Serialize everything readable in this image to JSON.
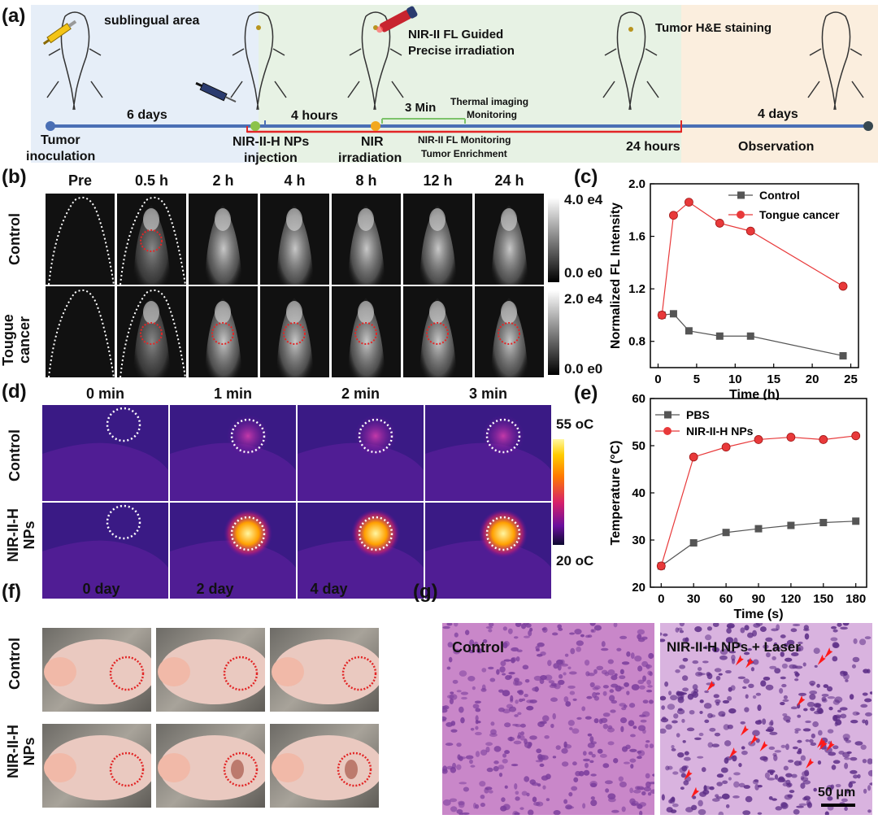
{
  "panels": {
    "a": "(a)",
    "b": "(b)",
    "c": "(c)",
    "d": "(d)",
    "e": "(e)",
    "f": "(f)",
    "g": "(g)"
  },
  "timeline": {
    "sublingual": "sublingual area",
    "days6": "6 days",
    "tumor_inoc_1": "Tumor",
    "tumor_inoc_2": "inoculation",
    "nps_inj_1": "NIR-II-H NPs",
    "nps_inj_2": "injection",
    "hours4": "4 hours",
    "min3": "3 Min",
    "thermal_1": "Thermal imaging",
    "thermal_2": "Monitoring",
    "nir_1": "NIR",
    "nir_2": "irradiation",
    "guided_1": "NIR-II FL Guided",
    "guided_2": "Precise irradiation",
    "fl_mon_1": "NIR-II FL Monitoring",
    "fl_mon_2": "Tumor Enrichment",
    "hours24": "24 hours",
    "he": "Tumor H&E staining",
    "days4": "4 days",
    "observation": "Observation"
  },
  "panel_b": {
    "times": [
      "Pre",
      "0.5 h",
      "2 h",
      "4 h",
      "8 h",
      "12 h",
      "24 h"
    ],
    "row1": "Control",
    "row2_1": "Tougue",
    "row2_2": "cancer",
    "scale1_top": "4.0 e4",
    "scale1_bot": "0.0 e0",
    "scale2_top": "2.0 e4",
    "scale2_bot": "0.0 e0"
  },
  "panel_d": {
    "times": [
      "0 min",
      "1 min",
      "2 min",
      "3 min"
    ],
    "row1": "Control",
    "row2_1": "NIR-II-H",
    "row2_2": "NPs",
    "scale_top": "55 oC",
    "scale_bot": "20 oC"
  },
  "panel_f": {
    "times": [
      "0 day",
      "2 day",
      "4 day"
    ],
    "row1": "Control",
    "row2_1": "NIR-II-H",
    "row2_2": "NPs"
  },
  "panel_g": {
    "left": "Control",
    "right": "NIR-II-H NPs + Laser",
    "scale": "50 μm"
  },
  "chart_data": [
    {
      "type": "line",
      "panel": "c",
      "xlabel": "Time (h)",
      "ylabel": "Normalized FL Intensity",
      "xlim": [
        -1,
        26
      ],
      "ylim": [
        0.6,
        2.0
      ],
      "xticks": [
        0,
        5,
        10,
        15,
        20,
        25
      ],
      "yticks": [
        0.8,
        1.2,
        1.6,
        2.0
      ],
      "legend_position": "top-right",
      "series": [
        {
          "name": "Control",
          "marker": "square",
          "color": "#555555",
          "x": [
            0.5,
            2,
            4,
            8,
            12,
            24
          ],
          "y": [
            1.0,
            1.01,
            0.88,
            0.84,
            0.84,
            0.69
          ]
        },
        {
          "name": "Tongue cancer",
          "marker": "circle",
          "color": "#e8393a",
          "x": [
            0.5,
            2,
            4,
            8,
            12,
            24
          ],
          "y": [
            1.0,
            1.76,
            1.86,
            1.7,
            1.64,
            1.22
          ]
        }
      ]
    },
    {
      "type": "line",
      "panel": "e",
      "xlabel": "Time (s)",
      "ylabel": "Temperature (°C)",
      "xlim": [
        -10,
        190
      ],
      "ylim": [
        20,
        60
      ],
      "xticks": [
        0,
        30,
        60,
        90,
        120,
        150,
        180
      ],
      "yticks": [
        20,
        30,
        40,
        50,
        60
      ],
      "legend_position": "top-left",
      "series": [
        {
          "name": "PBS",
          "marker": "square",
          "color": "#555555",
          "x": [
            0,
            30,
            60,
            90,
            120,
            150,
            180
          ],
          "y": [
            24.5,
            29.4,
            31.6,
            32.4,
            33.1,
            33.7,
            34.0
          ]
        },
        {
          "name": "NIR-II-H NPs",
          "marker": "circle",
          "color": "#e8393a",
          "x": [
            0,
            30,
            60,
            90,
            120,
            150,
            180
          ],
          "y": [
            24.5,
            47.6,
            49.7,
            51.3,
            51.8,
            51.3,
            52.1
          ]
        }
      ]
    }
  ]
}
